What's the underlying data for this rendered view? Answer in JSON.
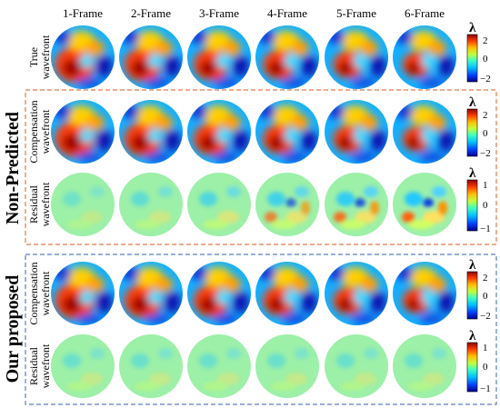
{
  "columns": [
    "1-Frame",
    "2-Frame",
    "3-Frame",
    "4-Frame",
    "5-Frame",
    "6-Frame"
  ],
  "groups": {
    "non_predicted": "Non-Predicted",
    "our_proposed": "Our proposed"
  },
  "rows": [
    {
      "id": "true",
      "label_top": "True",
      "label_bottom": "wavefront",
      "kind": "wavefront",
      "colorbar": {
        "symbol": "λ",
        "ticks": [
          "2",
          "0",
          "−2"
        ]
      }
    },
    {
      "id": "np-comp",
      "label_top": "Compensation",
      "label_bottom": "wavefront",
      "kind": "wavefront",
      "colorbar": {
        "symbol": "λ",
        "ticks": [
          "2",
          "0",
          "−2"
        ]
      }
    },
    {
      "id": "np-res",
      "label_top": "Residual",
      "label_bottom": "wavefront",
      "kind": "residual",
      "colorbar": {
        "symbol": "λ",
        "ticks": [
          "1",
          "0",
          "−1"
        ]
      }
    },
    {
      "id": "op-comp",
      "label_top": "Compensation",
      "label_bottom": "wavefront",
      "kind": "wavefront",
      "colorbar": {
        "symbol": "λ",
        "ticks": [
          "2",
          "0",
          "−2"
        ]
      }
    },
    {
      "id": "op-res",
      "label_top": "Residual",
      "label_bottom": "wavefront",
      "kind": "residual",
      "colorbar": {
        "symbol": "λ",
        "ticks": [
          "1",
          "0",
          "−1"
        ]
      }
    }
  ],
  "colors": {
    "non_predicted_box": "#e07a4a",
    "our_proposed_box": "#5b7fc4",
    "colormap": [
      "#00008f",
      "#0040ff",
      "#00c0ff",
      "#40ffc0",
      "#c0ff40",
      "#ffc000",
      "#ff4000",
      "#8f0000"
    ]
  }
}
